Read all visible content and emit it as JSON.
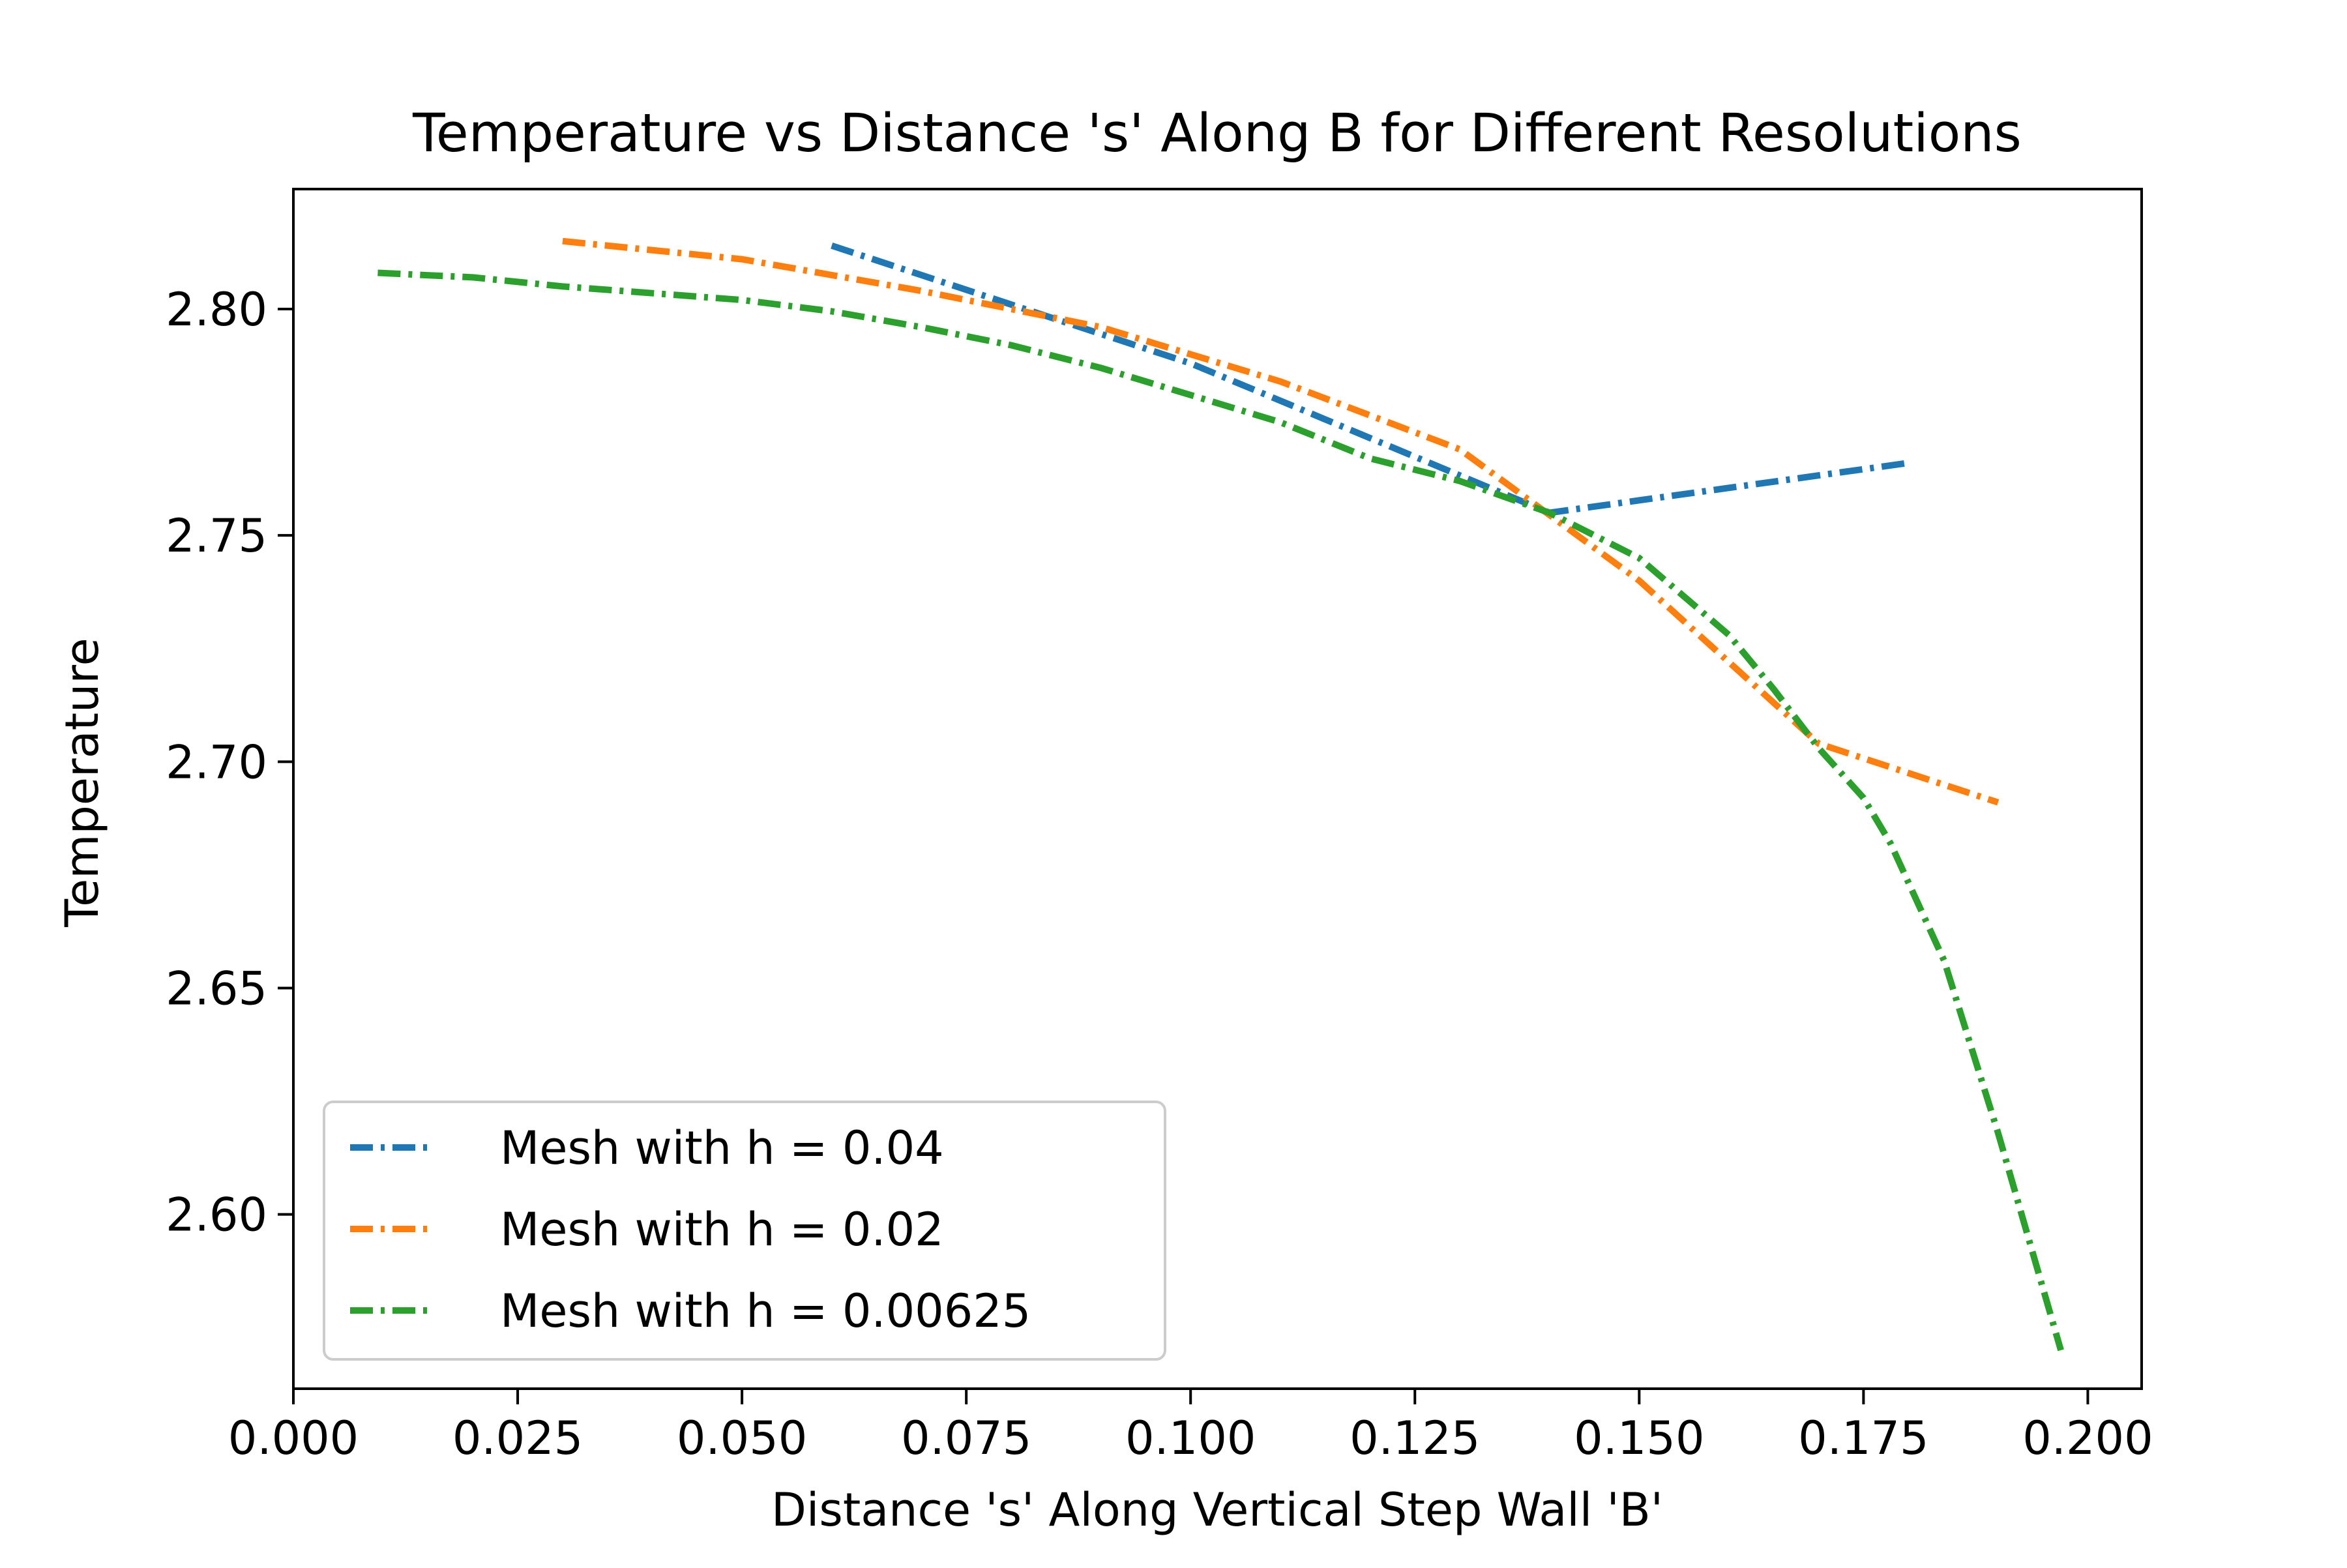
{
  "chart_data": {
    "type": "line",
    "title": "Temperature vs Distance 's' Along B for Different Resolutions",
    "xlabel": "Distance 's' Along Vertical Step Wall 'B'",
    "ylabel": "Temperature",
    "xlim": [
      0.0,
      0.206
    ],
    "ylim": [
      2.5615,
      2.8265
    ],
    "xticks": [
      {
        "value": 0.0,
        "label": "0.000"
      },
      {
        "value": 0.025,
        "label": "0.025"
      },
      {
        "value": 0.05,
        "label": "0.050"
      },
      {
        "value": 0.075,
        "label": "0.075"
      },
      {
        "value": 0.1,
        "label": "0.100"
      },
      {
        "value": 0.125,
        "label": "0.125"
      },
      {
        "value": 0.15,
        "label": "0.150"
      },
      {
        "value": 0.175,
        "label": "0.175"
      },
      {
        "value": 0.2,
        "label": "0.200"
      }
    ],
    "yticks": [
      {
        "value": 2.6,
        "label": "2.60"
      },
      {
        "value": 2.65,
        "label": "2.65"
      },
      {
        "value": 2.7,
        "label": "2.70"
      },
      {
        "value": 2.75,
        "label": "2.75"
      },
      {
        "value": 2.8,
        "label": "2.80"
      }
    ],
    "grid": false,
    "legend_position": "lower-left",
    "line_style": "dash-dot",
    "series": [
      {
        "name": "Mesh with h = 0.04",
        "color": "#1f77b4",
        "x": [
          0.06,
          0.1,
          0.14,
          0.18
        ],
        "y": [
          2.814,
          2.788,
          2.755,
          2.766
        ]
      },
      {
        "name": "Mesh with h = 0.02",
        "color": "#ff7f0e",
        "x": [
          0.03,
          0.05,
          0.07,
          0.09,
          0.11,
          0.13,
          0.15,
          0.17,
          0.19
        ],
        "y": [
          2.815,
          2.811,
          2.804,
          2.796,
          2.784,
          2.769,
          2.74,
          2.704,
          2.691
        ]
      },
      {
        "name": "Mesh with h = 0.00625",
        "color": "#2ca02c",
        "x": [
          0.0094,
          0.02,
          0.03,
          0.04,
          0.05,
          0.06,
          0.07,
          0.08,
          0.09,
          0.1,
          0.11,
          0.12,
          0.13,
          0.14,
          0.15,
          0.16,
          0.165,
          0.17,
          0.175,
          0.178,
          0.184,
          0.19,
          0.197
        ],
        "y": [
          2.808,
          2.807,
          2.805,
          2.8035,
          2.802,
          2.7995,
          2.796,
          2.792,
          2.787,
          2.781,
          2.775,
          2.767,
          2.762,
          2.755,
          2.745,
          2.728,
          2.716,
          2.703,
          2.692,
          2.682,
          2.656,
          2.618,
          2.57
        ]
      }
    ]
  }
}
